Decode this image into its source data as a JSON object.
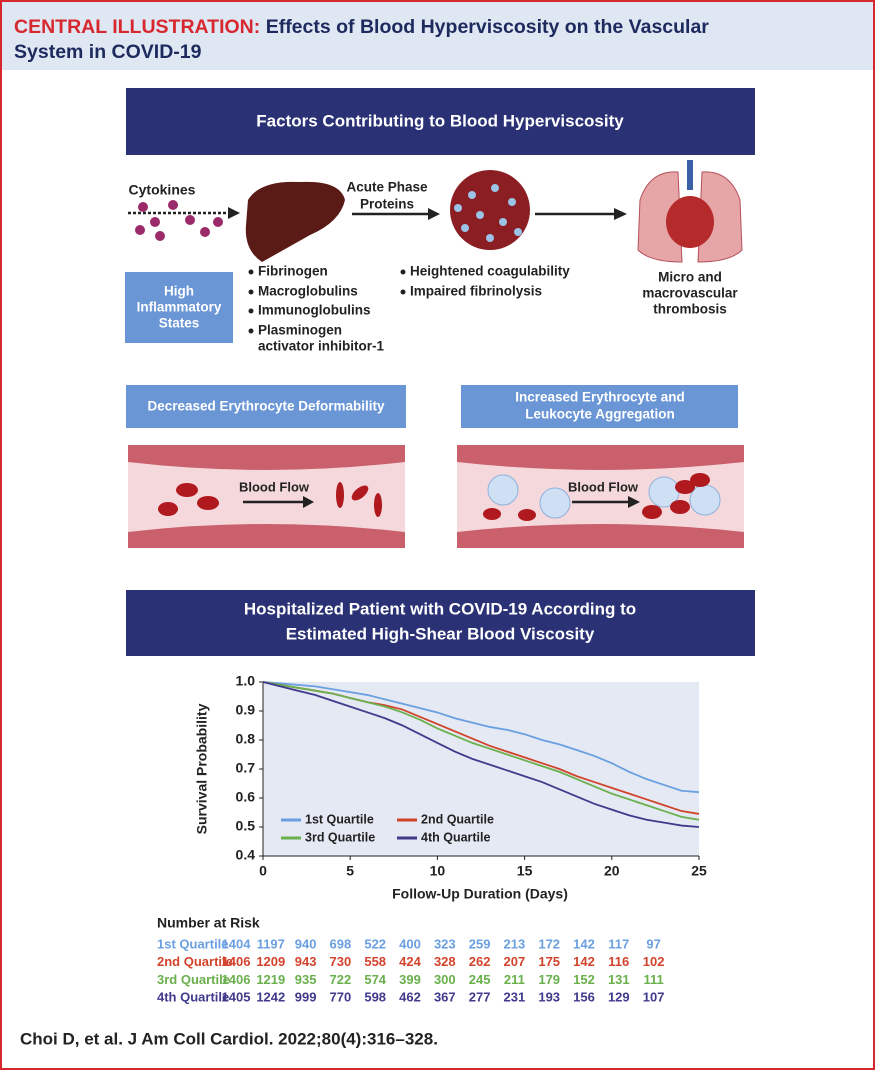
{
  "header": {
    "label": "CENTRAL ILLUSTRATION:",
    "title": [
      "Effects of Blood Hyperviscosity on the Vascular",
      "System in COVID-19"
    ]
  },
  "factors": {
    "title": "Factors Contributing to Blood Hyperviscosity",
    "cytokines": "Cytokines",
    "inflammatory": [
      "High",
      "Inflammatory",
      "States"
    ],
    "liver_products": [
      [
        "Fibrinogen"
      ],
      [
        "Macroglobulins"
      ],
      [
        "Immunoglobulins"
      ],
      [
        "Plasminogen",
        "activator inhibitor-1"
      ]
    ],
    "acute_phase": [
      "Acute Phase",
      "Proteins"
    ],
    "effects": [
      "Heightened coagulability",
      "Impaired fibrinolysis"
    ],
    "outcome": [
      "Micro and",
      "macrovascular",
      "thrombosis"
    ]
  },
  "mechanisms": [
    {
      "title": [
        "Decreased Erythrocyte Deformability"
      ],
      "flow": "Blood Flow"
    },
    {
      "title": [
        "Increased Erythrocyte and",
        "Leukocyte Aggregation"
      ],
      "flow": "Blood Flow"
    }
  ],
  "outcomes_panel": {
    "title": [
      "Hospitalized Patient with COVID-19 According to",
      "Estimated High-Shear Blood Viscosity"
    ]
  },
  "chart_data": {
    "type": "line",
    "x_label": "Follow-Up Duration (Days)",
    "y_label": "Survival Probability",
    "x": [
      0,
      1,
      2,
      3,
      4,
      5,
      6,
      7,
      8,
      9,
      10,
      11,
      12,
      13,
      14,
      15,
      16,
      17,
      18,
      19,
      20,
      21,
      22,
      23,
      24,
      25
    ],
    "series": [
      {
        "name": "1st Quartile",
        "color": "#6a9fe0",
        "values": [
          1.0,
          0.995,
          0.99,
          0.985,
          0.975,
          0.965,
          0.955,
          0.94,
          0.925,
          0.91,
          0.895,
          0.875,
          0.86,
          0.845,
          0.835,
          0.82,
          0.8,
          0.785,
          0.765,
          0.745,
          0.72,
          0.69,
          0.665,
          0.645,
          0.625,
          0.62
        ]
      },
      {
        "name": "2nd Quartile",
        "color": "#d2432c",
        "values": [
          1.0,
          0.99,
          0.98,
          0.97,
          0.96,
          0.945,
          0.93,
          0.92,
          0.905,
          0.88,
          0.855,
          0.83,
          0.805,
          0.78,
          0.76,
          0.74,
          0.72,
          0.7,
          0.675,
          0.655,
          0.635,
          0.615,
          0.595,
          0.575,
          0.555,
          0.545
        ]
      },
      {
        "name": "3rd Quartile",
        "color": "#6ab04c",
        "values": [
          1.0,
          0.99,
          0.98,
          0.97,
          0.96,
          0.945,
          0.93,
          0.915,
          0.895,
          0.87,
          0.84,
          0.815,
          0.79,
          0.77,
          0.75,
          0.73,
          0.71,
          0.69,
          0.665,
          0.64,
          0.615,
          0.595,
          0.575,
          0.555,
          0.535,
          0.525
        ]
      },
      {
        "name": "4th Quartile",
        "color": "#3f3a8c",
        "values": [
          1.0,
          0.985,
          0.97,
          0.955,
          0.935,
          0.915,
          0.895,
          0.875,
          0.85,
          0.82,
          0.79,
          0.76,
          0.735,
          0.715,
          0.695,
          0.675,
          0.655,
          0.63,
          0.605,
          0.58,
          0.56,
          0.54,
          0.525,
          0.515,
          0.505,
          0.5
        ]
      }
    ],
    "xlim": [
      0,
      25
    ],
    "ylim": [
      0.4,
      1.0
    ],
    "xticks": [
      0,
      5,
      10,
      15,
      20,
      25
    ],
    "yticks": [
      {
        "value": 1.0,
        "label": "1.0"
      },
      0.9,
      0.8,
      0.7,
      0.6,
      0.5,
      0.4
    ],
    "legend": "lower left"
  },
  "risk_table": {
    "title": "Number at Risk",
    "rows": [
      {
        "label": "1st Quartile",
        "values": [
          1404,
          1197,
          940,
          698,
          522,
          400,
          323,
          259,
          213,
          172,
          142,
          117,
          97
        ]
      },
      {
        "label": "2nd Quartile",
        "values": [
          1406,
          1209,
          943,
          730,
          558,
          424,
          328,
          262,
          207,
          175,
          142,
          116,
          102
        ]
      },
      {
        "label": "3rd Quartile",
        "values": [
          1406,
          1219,
          935,
          722,
          574,
          399,
          300,
          245,
          211,
          179,
          152,
          131,
          111
        ]
      },
      {
        "label": "4th Quartile",
        "values": [
          1405,
          1242,
          999,
          770,
          598,
          462,
          367,
          277,
          231,
          193,
          156,
          129,
          107
        ]
      }
    ]
  },
  "citation": "Choi D, et al. J Am Coll Cardiol. 2022;80(4):316–328."
}
